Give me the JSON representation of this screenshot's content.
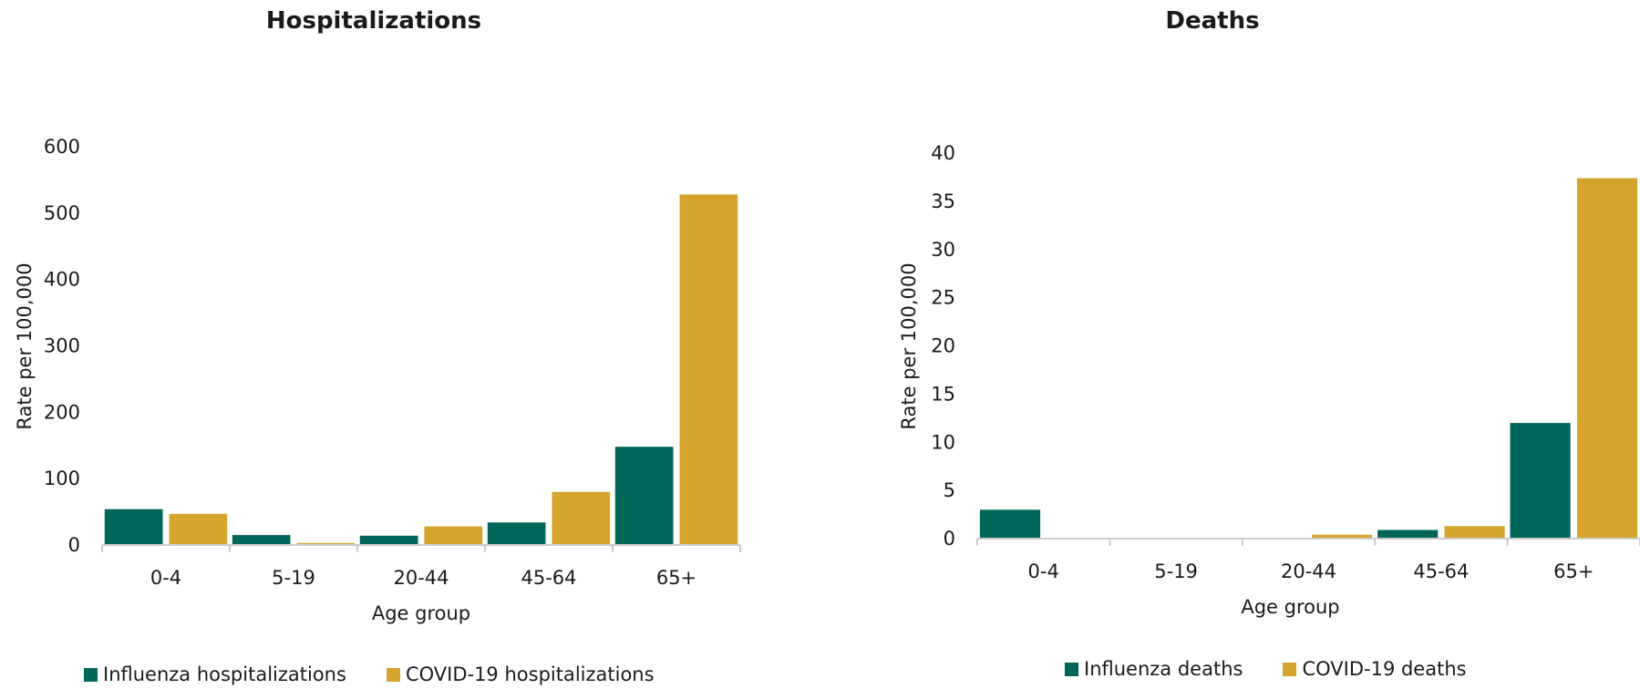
{
  "colors": {
    "influenza": "#00665a",
    "covid": "#d4a42c",
    "axis": "#cccccc"
  },
  "chart_data": [
    {
      "type": "bar",
      "title": "Hospitalizations",
      "xlabel": "Age group",
      "ylabel": "Rate per 100,000",
      "ylim": [
        0,
        600
      ],
      "yticks": [
        0,
        100,
        200,
        300,
        400,
        500,
        600
      ],
      "categories": [
        "0-4",
        "5-19",
        "20-44",
        "45-64",
        "65+"
      ],
      "series": [
        {
          "name": "Influenza hospitalizations",
          "values": [
            54,
            15,
            14,
            34,
            148
          ]
        },
        {
          "name": "COVID-19 hospitalizations",
          "values": [
            47,
            3,
            28,
            80,
            528
          ]
        }
      ],
      "legend": "bottom"
    },
    {
      "type": "bar",
      "title": "Deaths",
      "xlabel": "Age group",
      "ylabel": "Rate per 100,000",
      "ylim": [
        0,
        40
      ],
      "yticks": [
        0,
        5,
        10,
        15,
        20,
        25,
        30,
        35,
        40
      ],
      "categories": [
        "0-4",
        "5-19",
        "20-44",
        "45-64",
        "65+"
      ],
      "series": [
        {
          "name": "Influenza deaths",
          "values": [
            3,
            0,
            0,
            0.9,
            12
          ]
        },
        {
          "name": "COVID-19 deaths",
          "values": [
            0,
            0,
            0.4,
            1.3,
            37.4
          ]
        }
      ],
      "legend": "bottom"
    }
  ]
}
